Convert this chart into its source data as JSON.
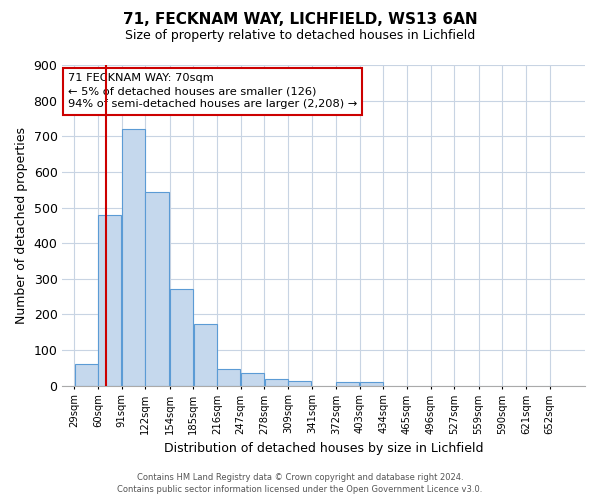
{
  "title": "71, FECKNAM WAY, LICHFIELD, WS13 6AN",
  "subtitle": "Size of property relative to detached houses in Lichfield",
  "xlabel": "Distribution of detached houses by size in Lichfield",
  "ylabel": "Number of detached properties",
  "bar_labels": [
    "29sqm",
    "60sqm",
    "91sqm",
    "122sqm",
    "154sqm",
    "185sqm",
    "216sqm",
    "247sqm",
    "278sqm",
    "309sqm",
    "341sqm",
    "372sqm",
    "403sqm",
    "434sqm",
    "465sqm",
    "496sqm",
    "527sqm",
    "559sqm",
    "590sqm",
    "621sqm",
    "652sqm"
  ],
  "bar_values": [
    62,
    480,
    720,
    543,
    271,
    172,
    47,
    35,
    18,
    14,
    0,
    10,
    10,
    0,
    0,
    0,
    0,
    0,
    0,
    0,
    0
  ],
  "bar_color": "#c5d8ed",
  "bar_edge_color": "#5b9bd5",
  "ylim": [
    0,
    900
  ],
  "yticks": [
    0,
    100,
    200,
    300,
    400,
    500,
    600,
    700,
    800,
    900
  ],
  "vline_x": 70,
  "vline_color": "#cc0000",
  "annotation_title": "71 FECKNAM WAY: 70sqm",
  "annotation_line1": "← 5% of detached houses are smaller (126)",
  "annotation_line2": "94% of semi-detached houses are larger (2,208) →",
  "annotation_box_color": "#ffffff",
  "annotation_box_edge": "#cc0000",
  "footer1": "Contains HM Land Registry data © Crown copyright and database right 2024.",
  "footer2": "Contains public sector information licensed under the Open Government Licence v3.0.",
  "background_color": "#ffffff",
  "grid_color": "#c8d4e3",
  "bin_edges": [
    29,
    60,
    91,
    122,
    154,
    185,
    216,
    247,
    278,
    309,
    341,
    372,
    403,
    434,
    465,
    496,
    527,
    559,
    590,
    621,
    652
  ],
  "bin_width": 31
}
